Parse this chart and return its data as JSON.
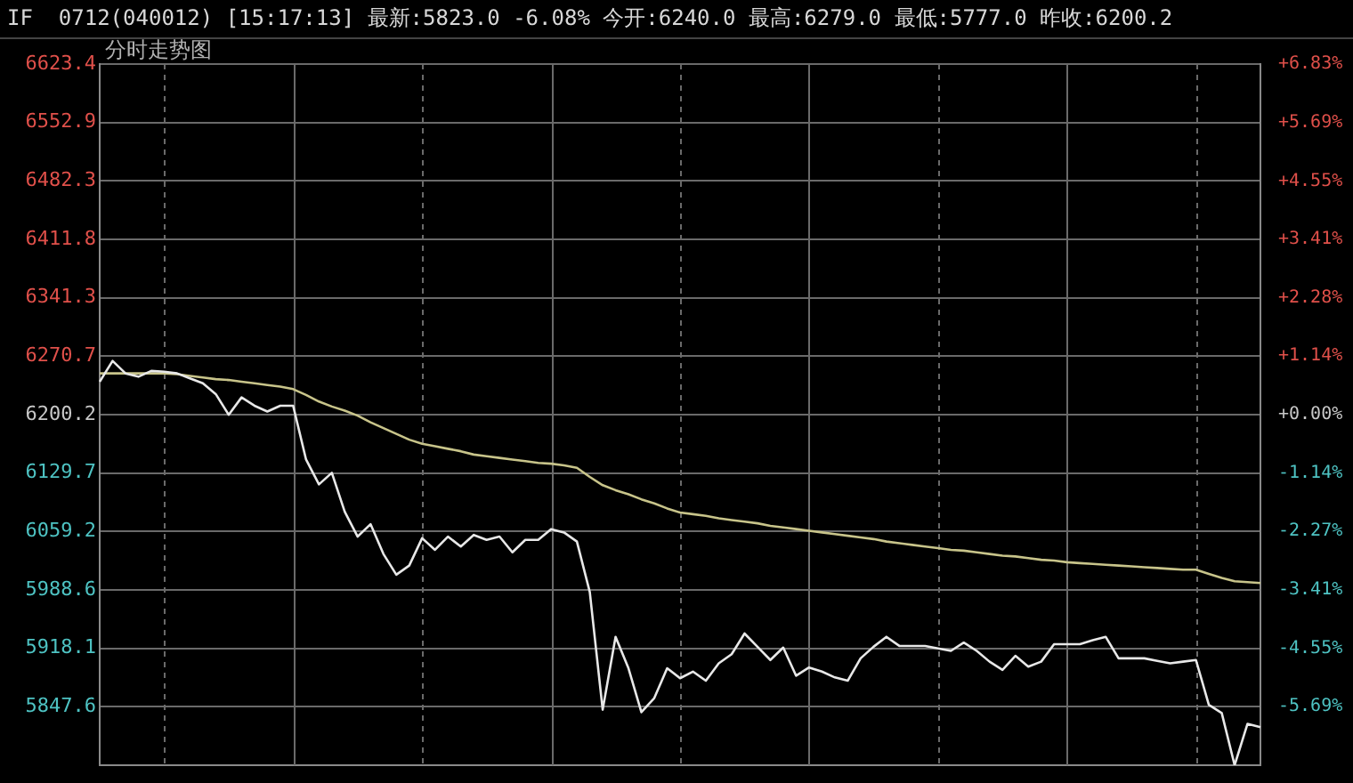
{
  "chart_data": {
    "type": "line",
    "title": "IF  0712(040012) [15:17:13] 最新:5823.0 -6.08% 今开:6240.0 最高:6279.0 最低:5777.0 昨收:6200.2",
    "subtitle": "分时走势图",
    "categories": [
      null,
      null,
      null,
      null,
      null,
      null,
      null,
      null,
      null,
      null,
      null,
      null,
      null,
      null,
      null,
      null,
      null,
      null,
      null,
      null,
      null,
      null,
      null,
      null,
      null,
      null,
      null,
      null,
      null,
      null,
      null,
      null,
      null,
      null,
      null,
      null,
      null,
      null,
      null,
      null,
      null,
      null,
      null,
      null,
      null,
      null,
      null,
      null,
      null,
      null,
      null,
      null,
      null,
      null,
      null,
      null,
      null,
      null,
      null,
      null,
      null,
      null,
      null,
      null,
      null,
      null,
      null,
      null,
      null,
      null,
      null,
      null,
      null,
      null,
      null,
      null,
      null,
      null,
      null,
      null,
      null,
      null,
      null,
      null,
      null,
      null,
      null,
      null,
      null,
      null,
      null
    ],
    "series": [
      {
        "color": "#e8e8e8",
        "values": [
          6240,
          6265,
          6250,
          6246,
          6253,
          6252,
          6250,
          6244,
          6238,
          6225,
          6200,
          6221,
          6211,
          6204,
          6211,
          6211,
          6146,
          6116,
          6130,
          6083,
          6053,
          6068,
          6032,
          6007,
          6018,
          6051,
          6037,
          6053,
          6041,
          6055,
          6049,
          6053,
          6034,
          6049,
          6049,
          6062,
          6058,
          6047,
          5986,
          5844,
          5932,
          5894,
          5841,
          5858,
          5894,
          5882,
          5890,
          5879,
          5900,
          5911,
          5936,
          5920,
          5904,
          5919,
          5885,
          5895,
          5890,
          5883,
          5879,
          5906,
          5920,
          5932,
          5921,
          5921,
          5921,
          5918,
          5915,
          5925,
          5915,
          5902,
          5892,
          5909,
          5896,
          5902,
          5923,
          5923,
          5923,
          5928,
          5932,
          5906,
          5906,
          5906,
          5903,
          5900,
          5902,
          5904,
          5850,
          5840,
          5777,
          5827,
          5823
        ]
      },
      {
        "color": "#c8c48a",
        "values": [
          6250,
          6250,
          6250,
          6250,
          6250,
          6250,
          6249,
          6247,
          6245,
          6243,
          6242,
          6240,
          6238,
          6236,
          6234,
          6231,
          6224,
          6216,
          6210,
          6205,
          6199,
          6191,
          6184,
          6177,
          6170,
          6165,
          6162,
          6159,
          6156,
          6152,
          6150,
          6148,
          6146,
          6144,
          6142,
          6141,
          6139,
          6136,
          6125,
          6115,
          6109,
          6104,
          6098,
          6093,
          6087,
          6082,
          6080,
          6078,
          6075,
          6073,
          6071,
          6069,
          6066,
          6064,
          6062,
          6060,
          6058,
          6056,
          6054,
          6052,
          6050,
          6047,
          6045,
          6043,
          6041,
          6039,
          6037,
          6036,
          6034,
          6032,
          6030,
          6029,
          6027,
          6025,
          6024,
          6022,
          6021,
          6020,
          6019,
          6018,
          6017,
          6016,
          6015,
          6014,
          6013,
          6013,
          6008,
          6003,
          5999,
          5998,
          5997
        ]
      }
    ],
    "ylim": [
      5777,
      6623.4
    ],
    "yticks": [
      {
        "value": 5847.6,
        "label": "5847.6"
      },
      {
        "value": 5918.1,
        "label": "5918.1"
      },
      {
        "value": 5988.6,
        "label": "5988.6"
      },
      {
        "value": 6059.2,
        "label": "6059.2"
      },
      {
        "value": 6129.7,
        "label": "6129.7"
      },
      {
        "value": 6200.2,
        "label": "6200.2"
      },
      {
        "value": 6270.7,
        "label": "6270.7"
      },
      {
        "value": 6341.3,
        "label": "6341.3"
      },
      {
        "value": 6411.8,
        "label": "6411.8"
      },
      {
        "value": 6482.3,
        "label": "6482.3"
      },
      {
        "value": 6552.9,
        "label": "6552.9"
      },
      {
        "value": 6623.4,
        "label": "6623.4"
      }
    ],
    "y2lim": [
      -6.83,
      6.83
    ],
    "y2ticks": [
      {
        "value": -5.69,
        "label": "-5.69%"
      },
      {
        "value": -4.55,
        "label": "-4.55%"
      },
      {
        "value": -3.41,
        "label": "-3.41%"
      },
      {
        "value": -2.27,
        "label": "-2.27%"
      },
      {
        "value": -1.14,
        "label": "-1.14%"
      },
      {
        "value": 0,
        "label": "+0.00%"
      },
      {
        "value": 1.14,
        "label": "+1.14%"
      },
      {
        "value": 2.28,
        "label": "+2.28%"
      },
      {
        "value": 3.41,
        "label": "+3.41%"
      },
      {
        "value": 4.55,
        "label": "+4.55%"
      },
      {
        "value": 5.69,
        "label": "+5.69%"
      },
      {
        "value": 6.83,
        "label": "+6.83%"
      }
    ],
    "grid": true,
    "legend": false,
    "marker": "none",
    "line_style": "solid"
  }
}
